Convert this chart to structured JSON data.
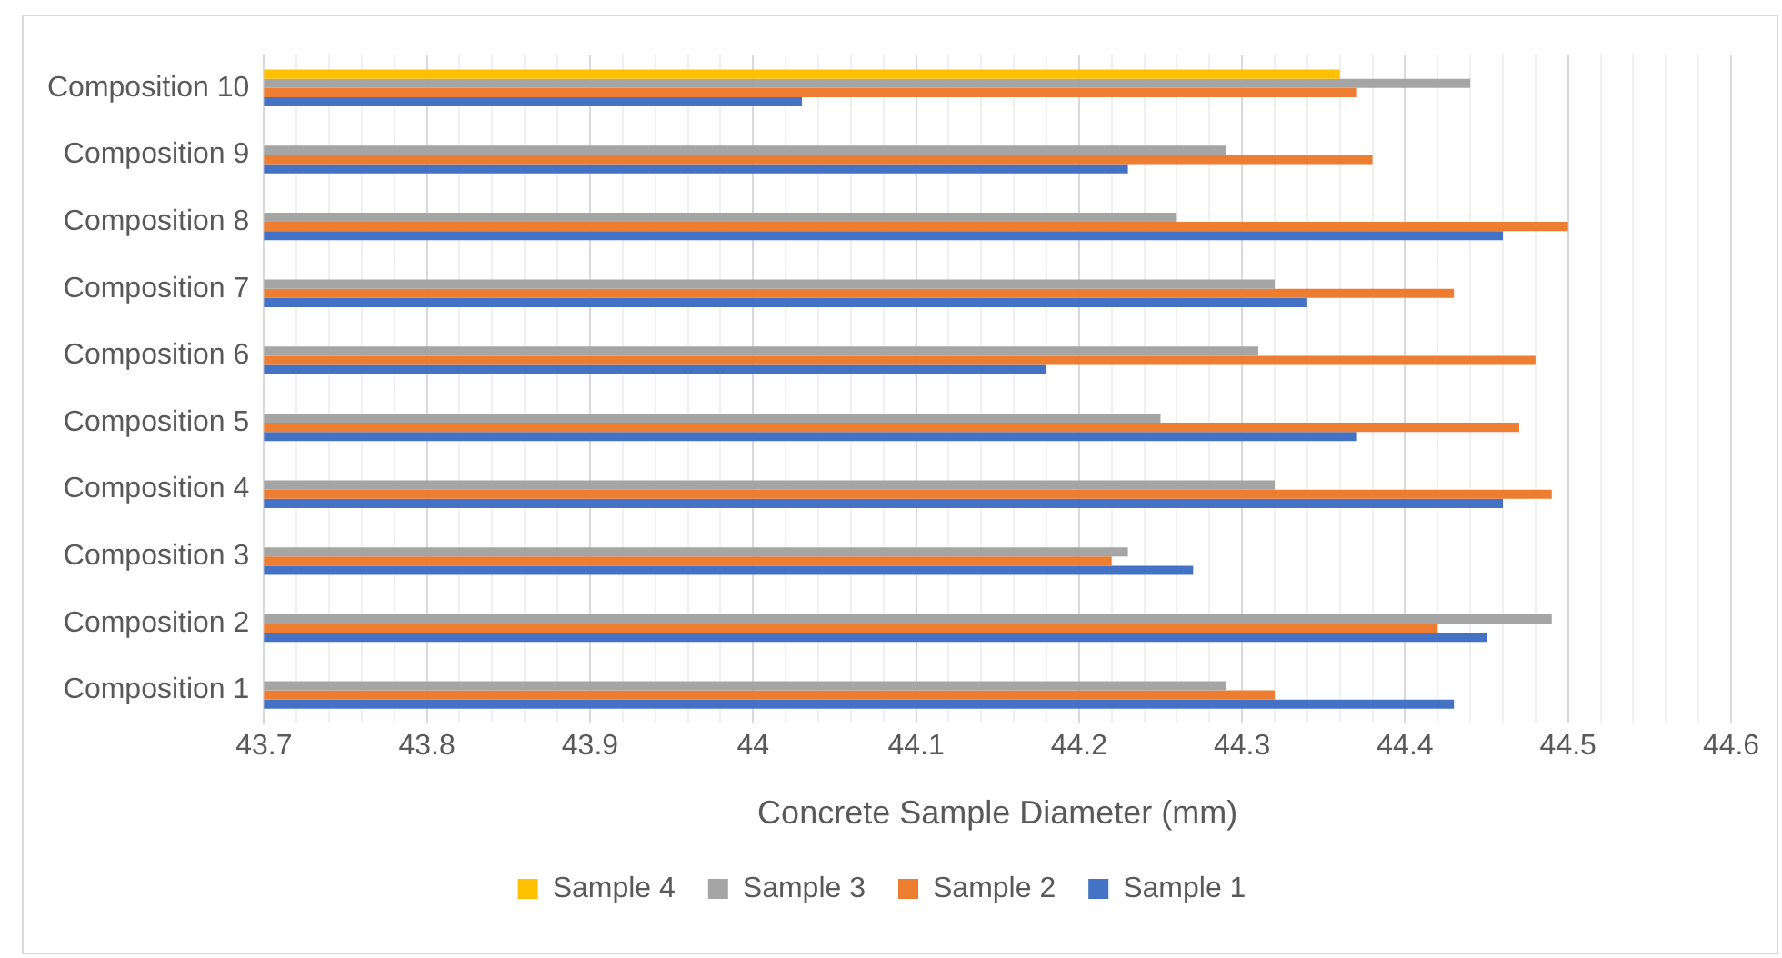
{
  "chart_data": {
    "type": "bar",
    "orientation": "horizontal",
    "xlabel": "Concrete Sample Diameter (mm)",
    "categories": [
      "Composition 10",
      "Composition 9",
      "Composition 8",
      "Composition 7",
      "Composition 6",
      "Composition 5",
      "Composition 4",
      "Composition 3",
      "Composition 2",
      "Composition 1"
    ],
    "series": [
      {
        "name": "Sample 4",
        "color": "#ffc000",
        "values": [
          44.36,
          null,
          null,
          null,
          null,
          null,
          null,
          null,
          null,
          null
        ]
      },
      {
        "name": "Sample 3",
        "color": "#a5a5a5",
        "values": [
          44.44,
          44.29,
          44.26,
          44.32,
          44.31,
          44.25,
          44.32,
          44.23,
          44.49,
          44.29
        ]
      },
      {
        "name": "Sample 2",
        "color": "#ed7d31",
        "values": [
          44.37,
          44.38,
          44.5,
          44.43,
          44.48,
          44.47,
          44.49,
          44.22,
          44.42,
          44.32
        ]
      },
      {
        "name": "Sample 1",
        "color": "#4472c4",
        "values": [
          44.03,
          44.23,
          44.46,
          44.34,
          44.18,
          44.37,
          44.46,
          44.27,
          44.45,
          44.43
        ]
      }
    ],
    "xlim": [
      43.7,
      44.6
    ],
    "xticks": [
      43.7,
      {
        "value": 43.72,
        "label": null
      },
      {
        "value": 43.74,
        "label": null
      },
      {
        "value": 43.76,
        "label": null
      },
      {
        "value": 43.78,
        "label": null
      },
      43.8,
      {
        "value": 43.82,
        "label": null
      },
      {
        "value": 43.84,
        "label": null
      },
      {
        "value": 43.86,
        "label": null
      },
      {
        "value": 43.88,
        "label": null
      },
      43.9,
      {
        "value": 43.92,
        "label": null
      },
      {
        "value": 43.94,
        "label": null
      },
      {
        "value": 43.96,
        "label": null
      },
      {
        "value": 43.98,
        "label": null
      },
      44,
      {
        "value": 44.02,
        "label": null
      },
      {
        "value": 44.04,
        "label": null
      },
      {
        "value": 44.06,
        "label": null
      },
      {
        "value": 44.08,
        "label": null
      },
      44.1,
      {
        "value": 44.12,
        "label": null
      },
      {
        "value": 44.14,
        "label": null
      },
      {
        "value": 44.16,
        "label": null
      },
      {
        "value": 44.18,
        "label": null
      },
      44.2,
      {
        "value": 44.22,
        "label": null
      },
      {
        "value": 44.24,
        "label": null
      },
      {
        "value": 44.26,
        "label": null
      },
      {
        "value": 44.28,
        "label": null
      },
      44.3,
      {
        "value": 44.32,
        "label": null
      },
      {
        "value": 44.34,
        "label": null
      },
      {
        "value": 44.36,
        "label": null
      },
      {
        "value": 44.38,
        "label": null
      },
      44.4,
      {
        "value": 44.42,
        "label": null
      },
      {
        "value": 44.44,
        "label": null
      },
      {
        "value": 44.46,
        "label": null
      },
      {
        "value": 44.48,
        "label": null
      },
      44.5,
      {
        "value": 44.52,
        "label": null
      },
      {
        "value": 44.54,
        "label": null
      },
      {
        "value": 44.56,
        "label": null
      },
      {
        "value": 44.58,
        "label": null
      },
      44.6
    ],
    "grid": "x",
    "legend": "bottom"
  }
}
